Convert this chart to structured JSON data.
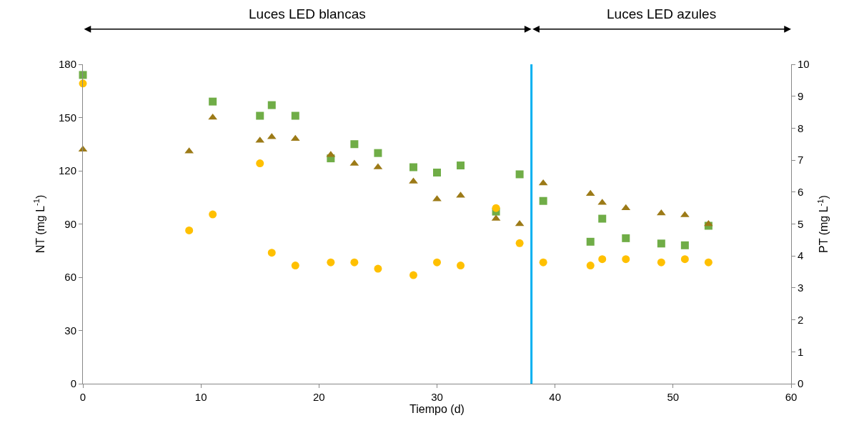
{
  "chart_data": {
    "type": "scatter",
    "xlabel": "Tiempo (d)",
    "ylabel": "NT (mg L$^{-1}$)",
    "y2label": "PT (mg L$^{-1}$)",
    "x": [
      0,
      9,
      11,
      15,
      16,
      18,
      21,
      23,
      25,
      28,
      30,
      32,
      35,
      37,
      39,
      43,
      44,
      46,
      49,
      51,
      53
    ],
    "xlim": [
      0,
      60
    ],
    "xticks": [
      0,
      10,
      20,
      30,
      40,
      50,
      60
    ],
    "ylim": [
      0,
      180
    ],
    "yticks": [
      0,
      30,
      60,
      90,
      120,
      150,
      180
    ],
    "y2lim": [
      0,
      10
    ],
    "y2ticks": [
      0,
      1,
      2,
      3,
      4,
      5,
      6,
      7,
      8,
      9,
      10
    ],
    "series": [
      {
        "color": "#70ad47",
        "marker": "square",
        "x": [
          0,
          11,
          15,
          16,
          18,
          21,
          23,
          25,
          28,
          30,
          32,
          35,
          37,
          39,
          43,
          44,
          46,
          49,
          51,
          53
        ],
        "values": [
          174,
          159,
          151,
          157,
          151,
          127,
          135,
          130,
          122,
          119,
          123,
          97,
          118,
          103,
          80,
          93,
          82,
          79,
          78,
          89
        ]
      },
      {
        "color": "#9c7a17",
        "marker": "triangle",
        "values": [
          132,
          131,
          150,
          137,
          139,
          138,
          129,
          124,
          122,
          114,
          104,
          106,
          93,
          90,
          113,
          107,
          102,
          99,
          96,
          95,
          90
        ]
      },
      {
        "color": "#ffc000",
        "marker": "circle",
        "axis": "y2",
        "values": [
          9.4,
          4.8,
          5.3,
          6.9,
          4.1,
          3.7,
          3.8,
          3.8,
          3.6,
          3.4,
          3.8,
          3.7,
          5.5,
          4.4,
          3.8,
          3.7,
          3.9,
          3.9,
          3.8,
          3.9,
          3.8
        ]
      }
    ],
    "ref_lines": [
      {
        "axis": "x",
        "value": 38,
        "color": "#00b0f0",
        "line_style": "solid"
      }
    ],
    "annotations": [
      "Luces LED blancas",
      "Luces LED azules"
    ]
  }
}
